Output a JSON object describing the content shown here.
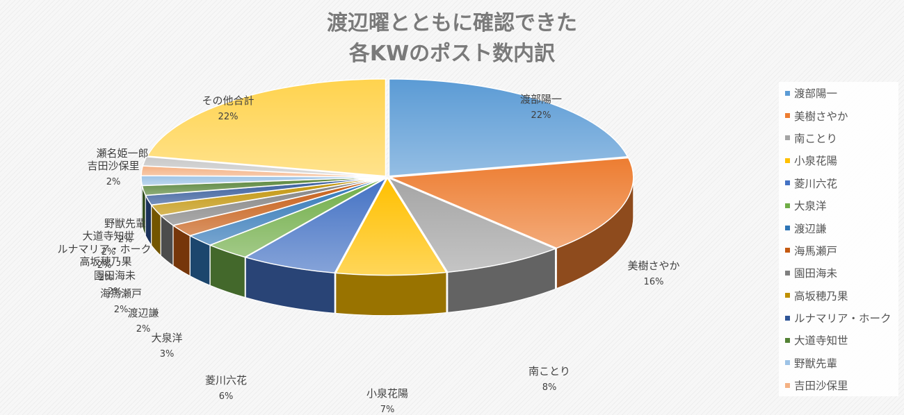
{
  "chart_data": {
    "type": "pie",
    "style": "3d-exploded",
    "title_lines": [
      "渡辺曜とともに確認できた",
      "各KWのポスト数内訳"
    ],
    "legend_position": "right",
    "slices": [
      {
        "name": "渡部陽一",
        "percent_label": "22%",
        "value": 21.8,
        "color": "#5b9bd5"
      },
      {
        "name": "美樹さやか",
        "percent_label": "16%",
        "value": 16.2,
        "color": "#ed7d31"
      },
      {
        "name": "南ことり",
        "percent_label": "8%",
        "value": 8.1,
        "color": "#a5a5a5"
      },
      {
        "name": "小泉花陽",
        "percent_label": "7%",
        "value": 7.3,
        "color": "#ffc000"
      },
      {
        "name": "菱川六花",
        "percent_label": "6%",
        "value": 6.4,
        "color": "#4472c4"
      },
      {
        "name": "大泉洋",
        "percent_label": "3%",
        "value": 3.0,
        "color": "#70ad47"
      },
      {
        "name": "渡辺謙",
        "percent_label": "2%",
        "value": 2.0,
        "color": "#2e75b6"
      },
      {
        "name": "海馬瀬戸",
        "percent_label": "2%",
        "value": 2.0,
        "color": "#c55a11"
      },
      {
        "name": "園田海未",
        "percent_label": "2%",
        "value": 1.8,
        "color": "#7f7f7f"
      },
      {
        "name": "高坂穂乃果",
        "percent_label": "2%",
        "value": 1.8,
        "color": "#bf9000"
      },
      {
        "name": "ルナマリア・ホーク",
        "percent_label": "2%",
        "value": 1.6,
        "color": "#2f5597"
      },
      {
        "name": "大道寺知世",
        "percent_label": "2%",
        "value": 1.6,
        "color": "#548235"
      },
      {
        "name": "野獣先輩",
        "percent_label": "2%",
        "value": 1.6,
        "color": "#9dc3e6"
      },
      {
        "name": "吉田沙保里",
        "percent_label": "2%",
        "value": 1.6,
        "color": "#f4b183"
      },
      {
        "name": "瀬名姫一郎",
        "percent_label": "",
        "value": 1.5,
        "color": "#c9c9c9"
      },
      {
        "name": "その他合計",
        "percent_label": "22%",
        "value": 21.7,
        "color": "#ffd34e"
      }
    ],
    "legend_entries": [
      "渡部陽一",
      "美樹さやか",
      "南ことり",
      "小泉花陽",
      "菱川六花",
      "大泉洋",
      "渡辺謙",
      "海馬瀬戸",
      "園田海未",
      "高坂穂乃果",
      "ルナマリア・ホーク",
      "大道寺知世",
      "野獣先輩",
      "吉田沙保里"
    ]
  }
}
